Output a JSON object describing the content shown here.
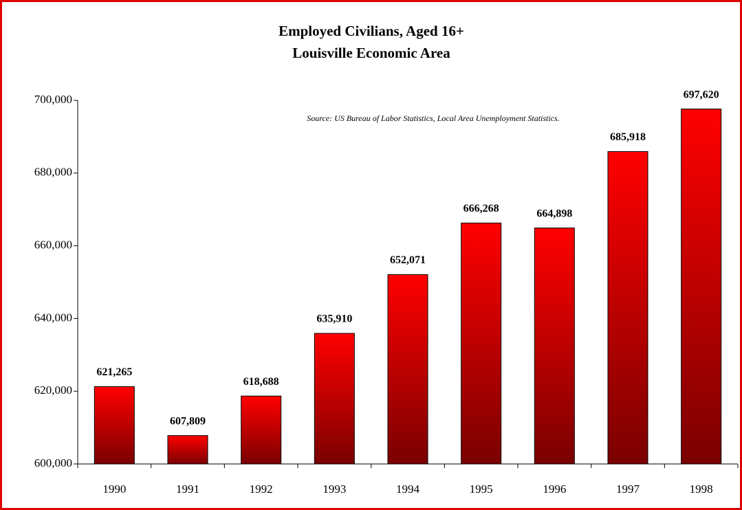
{
  "chart_data": {
    "type": "bar",
    "title": "Employed Civilians, Aged 16+",
    "subtitle": "Louisville Economic Area",
    "annotation": "Source: US Bureau of Labor Statistics, Local Area Unemployment Statistics.",
    "categories": [
      "1990",
      "1991",
      "1992",
      "1993",
      "1994",
      "1995",
      "1996",
      "1997",
      "1998"
    ],
    "values": [
      621265,
      607809,
      618688,
      635910,
      652071,
      666268,
      664898,
      685918,
      697620
    ],
    "value_labels": [
      "621,265",
      "607,809",
      "618,688",
      "635,910",
      "652,071",
      "666,268",
      "664,898",
      "685,918",
      "697,620"
    ],
    "color": "#ff0000",
    "ylim": [
      600000,
      700000
    ],
    "yticks": [
      {
        "value": 600000,
        "label": "600,000"
      },
      {
        "value": 620000,
        "label": "620,000"
      },
      {
        "value": 640000,
        "label": "640,000"
      },
      {
        "value": 660000,
        "label": "660,000"
      },
      {
        "value": 680000,
        "label": "680,000"
      },
      {
        "value": 700000,
        "label": "700,000"
      }
    ]
  }
}
